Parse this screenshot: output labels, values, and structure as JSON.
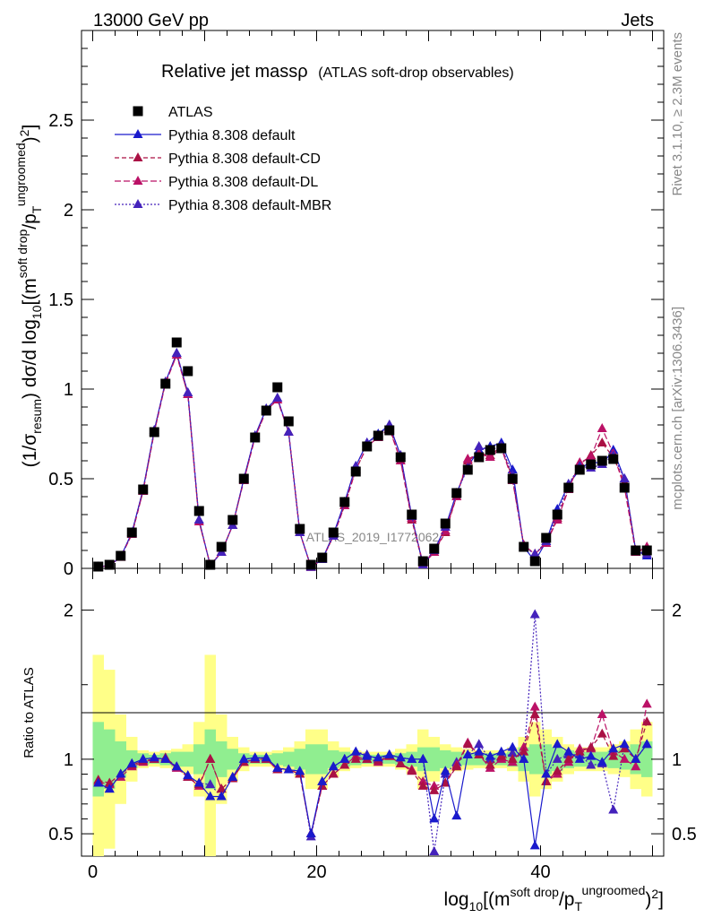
{
  "header": {
    "left": "13000 GeV pp",
    "right": "Jets",
    "title_main": "Relative jet massρ",
    "title_sub": "(ATLAS soft-drop observables)",
    "side_top": "Rivet 3.1.10, ≥ 2.3M events",
    "side_bottom": "mcplots.cern.ch [arXiv:1306.3436]",
    "watermark": "ATLAS_2019_I1772062"
  },
  "axes": {
    "ylabel_main": "(1/σresum) dσ/d log10[(m soft drop/pT ungroomed)2]",
    "ylabel_ratio": "Ratio to ATLAS",
    "xlabel": "log10[(m soft drop/pT ungroomed)2]"
  },
  "colors": {
    "data": "#000000",
    "default": "#1a1acc",
    "cd": "#aa1144",
    "dl": "#bb1166",
    "mbr": "#4422bb",
    "band_inner": "#90ee90",
    "band_outer": "#ffff88"
  },
  "chart_data": [
    {
      "type": "scatter",
      "panel": "main",
      "xlim": [
        -1,
        51
      ],
      "ylim": [
        0,
        3.0
      ],
      "x_ticks": [
        0,
        20,
        40
      ],
      "y_ticks": [
        0,
        0.5,
        1,
        1.5,
        2,
        2.5
      ],
      "x": [
        0.5,
        1.5,
        2.5,
        3.5,
        4.5,
        5.5,
        6.5,
        7.5,
        8.5,
        9.5,
        10.5,
        11.5,
        12.5,
        13.5,
        14.5,
        15.5,
        16.5,
        17.5,
        18.5,
        19.5,
        20.5,
        21.5,
        22.5,
        23.5,
        24.5,
        25.5,
        26.5,
        27.5,
        28.5,
        29.5,
        30.5,
        31.5,
        32.5,
        33.5,
        34.5,
        35.5,
        36.5,
        37.5,
        38.5,
        39.5,
        40.5,
        41.5,
        42.5,
        43.5,
        44.5,
        45.5,
        46.5,
        47.5,
        48.5,
        49.5
      ],
      "series": [
        {
          "name": "ATLAS",
          "style": "data",
          "values": [
            0.01,
            0.02,
            0.07,
            0.2,
            0.44,
            0.76,
            1.03,
            1.26,
            1.1,
            0.32,
            0.02,
            0.12,
            0.27,
            0.5,
            0.73,
            0.88,
            1.01,
            0.82,
            0.22,
            0.02,
            0.06,
            0.2,
            0.37,
            0.54,
            0.68,
            0.74,
            0.77,
            0.62,
            0.3,
            0.04,
            0.11,
            0.25,
            0.42,
            0.55,
            0.62,
            0.66,
            0.67,
            0.5,
            0.12,
            0.04,
            0.17,
            0.3,
            0.45,
            0.55,
            0.58,
            0.6,
            0.61,
            0.45,
            0.1,
            0.1
          ]
        },
        {
          "name": "Pythia 8.308 default",
          "style": "default",
          "values": [
            0.009,
            0.016,
            0.063,
            0.2,
            0.44,
            0.77,
            1.04,
            1.2,
            0.98,
            0.27,
            0.015,
            0.09,
            0.24,
            0.5,
            0.74,
            0.89,
            0.95,
            0.76,
            0.2,
            0.007,
            0.05,
            0.19,
            0.37,
            0.57,
            0.7,
            0.75,
            0.8,
            0.63,
            0.29,
            0.02,
            0.1,
            0.23,
            0.42,
            0.57,
            0.66,
            0.68,
            0.7,
            0.55,
            0.12,
            0.04,
            0.15,
            0.33,
            0.47,
            0.55,
            0.6,
            0.58,
            0.66,
            0.5,
            0.1,
            0.07
          ]
        },
        {
          "name": "Pythia 8.308 default-CD",
          "style": "cd",
          "values": [
            0.008,
            0.017,
            0.063,
            0.19,
            0.43,
            0.76,
            1.04,
            1.19,
            0.97,
            0.26,
            0.02,
            0.09,
            0.24,
            0.49,
            0.73,
            0.88,
            0.94,
            0.76,
            0.2,
            0.006,
            0.05,
            0.18,
            0.35,
            0.55,
            0.68,
            0.73,
            0.79,
            0.6,
            0.27,
            0.02,
            0.09,
            0.2,
            0.4,
            0.6,
            0.64,
            0.63,
            0.68,
            0.5,
            0.13,
            0.08,
            0.14,
            0.28,
            0.45,
            0.58,
            0.63,
            0.7,
            0.62,
            0.48,
            0.1,
            0.1
          ]
        },
        {
          "name": "Pythia 8.308 default-DL",
          "style": "dl",
          "values": [
            0.008,
            0.016,
            0.062,
            0.19,
            0.43,
            0.76,
            1.03,
            1.19,
            0.97,
            0.26,
            0.02,
            0.09,
            0.24,
            0.49,
            0.73,
            0.88,
            0.94,
            0.76,
            0.2,
            0.007,
            0.05,
            0.18,
            0.35,
            0.55,
            0.68,
            0.73,
            0.78,
            0.6,
            0.28,
            0.03,
            0.09,
            0.21,
            0.4,
            0.61,
            0.64,
            0.62,
            0.67,
            0.49,
            0.13,
            0.08,
            0.14,
            0.27,
            0.44,
            0.59,
            0.62,
            0.78,
            0.64,
            0.45,
            0.09,
            0.12
          ]
        },
        {
          "name": "Pythia 8.308 default-MBR",
          "style": "mbr",
          "values": [
            0.009,
            0.016,
            0.063,
            0.2,
            0.44,
            0.77,
            1.04,
            1.2,
            0.98,
            0.27,
            0.015,
            0.09,
            0.24,
            0.5,
            0.74,
            0.89,
            0.95,
            0.76,
            0.2,
            0.007,
            0.05,
            0.18,
            0.37,
            0.57,
            0.7,
            0.74,
            0.8,
            0.63,
            0.29,
            0.02,
            0.1,
            0.23,
            0.42,
            0.56,
            0.68,
            0.66,
            0.68,
            0.52,
            0.12,
            0.08,
            0.15,
            0.3,
            0.47,
            0.57,
            0.56,
            0.58,
            0.63,
            0.5,
            0.1,
            0.08
          ]
        }
      ]
    },
    {
      "type": "line",
      "panel": "ratio",
      "xlim": [
        -1,
        51
      ],
      "ylim": [
        0.35,
        2.28
      ],
      "y_ticks": [
        0.5,
        1,
        2
      ],
      "x": [
        0.5,
        1.5,
        2.5,
        3.5,
        4.5,
        5.5,
        6.5,
        7.5,
        8.5,
        9.5,
        10.5,
        11.5,
        12.5,
        13.5,
        14.5,
        15.5,
        16.5,
        17.5,
        18.5,
        19.5,
        20.5,
        21.5,
        22.5,
        23.5,
        24.5,
        25.5,
        26.5,
        27.5,
        28.5,
        29.5,
        30.5,
        31.5,
        32.5,
        33.5,
        34.5,
        35.5,
        36.5,
        37.5,
        38.5,
        39.5,
        40.5,
        41.5,
        42.5,
        43.5,
        44.5,
        45.5,
        46.5,
        47.5,
        48.5,
        49.5
      ],
      "band_inner": [
        0.25,
        0.2,
        0.12,
        0.06,
        0.04,
        0.03,
        0.04,
        0.05,
        0.05,
        0.1,
        0.2,
        0.12,
        0.07,
        0.04,
        0.03,
        0.03,
        0.04,
        0.05,
        0.07,
        0.1,
        0.1,
        0.06,
        0.05,
        0.04,
        0.03,
        0.03,
        0.03,
        0.04,
        0.05,
        0.08,
        0.08,
        0.06,
        0.05,
        0.04,
        0.04,
        0.04,
        0.04,
        0.05,
        0.08,
        0.1,
        0.1,
        0.08,
        0.06,
        0.05,
        0.05,
        0.05,
        0.06,
        0.07,
        0.1,
        0.12
      ],
      "band_outer": [
        0.7,
        0.6,
        0.3,
        0.15,
        0.06,
        0.05,
        0.06,
        0.07,
        0.1,
        0.25,
        0.7,
        0.3,
        0.15,
        0.08,
        0.05,
        0.05,
        0.06,
        0.08,
        0.12,
        0.2,
        0.2,
        0.12,
        0.08,
        0.06,
        0.05,
        0.05,
        0.05,
        0.07,
        0.1,
        0.2,
        0.15,
        0.1,
        0.08,
        0.07,
        0.06,
        0.06,
        0.06,
        0.08,
        0.15,
        0.25,
        0.2,
        0.15,
        0.1,
        0.08,
        0.08,
        0.08,
        0.1,
        0.12,
        0.2,
        0.25
      ],
      "series": [
        {
          "name": "Pythia 8.308 default",
          "style": "default",
          "values": [
            0.84,
            0.8,
            0.9,
            0.97,
            1.0,
            1.01,
            1.0,
            0.95,
            0.89,
            0.84,
            0.75,
            0.75,
            0.88,
            1.0,
            1.01,
            1.01,
            0.94,
            0.93,
            0.92,
            0.5,
            0.85,
            0.95,
            1.0,
            1.05,
            1.02,
            1.01,
            1.03,
            1.01,
            1.0,
            1.0,
            0.6,
            0.92,
            0.62,
            1.03,
            1.05,
            1.02,
            1.05,
            1.08,
            1.0,
            0.42,
            0.9,
            1.1,
            1.05,
            1.0,
            1.02,
            0.98,
            1.07,
            1.1,
            1.0,
            1.1
          ]
        },
        {
          "name": "Pythia 8.308 default-CD",
          "style": "cd",
          "values": [
            0.86,
            0.84,
            0.9,
            0.96,
            0.99,
            1.0,
            1.01,
            0.95,
            0.88,
            0.83,
            1.0,
            0.8,
            0.87,
            0.98,
            1.0,
            1.0,
            0.93,
            0.93,
            0.9,
            0.5,
            0.82,
            0.9,
            0.96,
            1.0,
            1.0,
            0.99,
            1.02,
            0.97,
            0.92,
            0.82,
            0.79,
            0.84,
            0.95,
            1.1,
            1.03,
            0.96,
            1.02,
            1.0,
            1.05,
            1.3,
            0.85,
            0.92,
            1.0,
            1.05,
            1.08,
            1.17,
            1.02,
            1.07,
            1.0,
            1.25
          ]
        },
        {
          "name": "Pythia 8.308 default-DL",
          "style": "dl",
          "values": [
            0.85,
            0.83,
            0.88,
            0.95,
            0.98,
            1.0,
            1.0,
            0.94,
            0.88,
            0.82,
            1.0,
            0.8,
            0.87,
            0.98,
            1.0,
            1.0,
            0.93,
            0.93,
            0.9,
            0.5,
            0.82,
            0.9,
            0.96,
            1.02,
            1.0,
            0.98,
            1.02,
            0.97,
            0.93,
            0.85,
            0.82,
            0.84,
            0.96,
            1.11,
            1.03,
            0.94,
            1.0,
            0.98,
            1.08,
            1.35,
            0.85,
            0.9,
            0.98,
            1.07,
            1.07,
            1.3,
            1.05,
            1.0,
            0.95,
            1.37
          ]
        },
        {
          "name": "Pythia 8.308 default-MBR",
          "style": "mbr",
          "values": [
            0.84,
            0.8,
            0.9,
            0.97,
            1.0,
            1.01,
            1.0,
            0.95,
            0.89,
            0.84,
            0.83,
            0.75,
            0.88,
            1.0,
            1.01,
            1.01,
            0.94,
            0.93,
            0.92,
            0.48,
            0.85,
            0.95,
            1.0,
            1.05,
            1.03,
            1.0,
            1.03,
            1.01,
            1.0,
            1.0,
            0.38,
            0.9,
            0.98,
            1.03,
            1.1,
            1.0,
            1.01,
            1.04,
            1.0,
            1.97,
            0.9,
            1.0,
            1.03,
            1.03,
            0.96,
            0.97,
            0.66,
            1.1,
            1.0,
            1.1
          ]
        }
      ]
    }
  ]
}
